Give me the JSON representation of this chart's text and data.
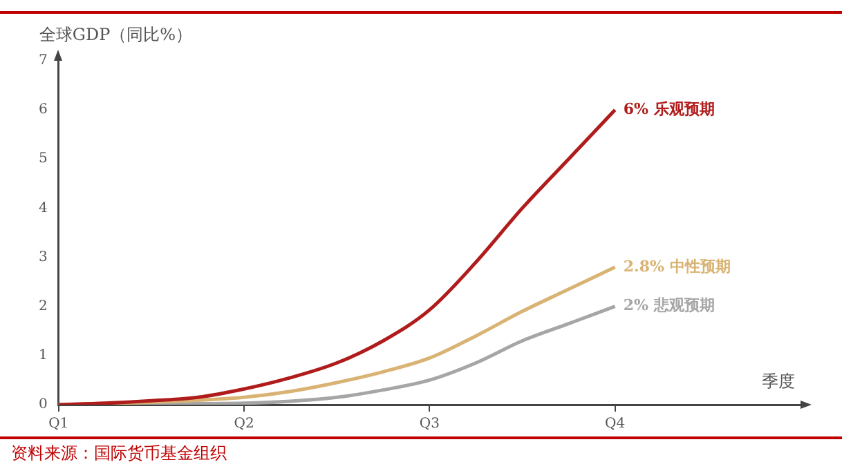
{
  "chart_data": {
    "type": "line",
    "ylabel": "全球GDP（同比%）",
    "xlabel": "季度",
    "categories": [
      "Q1",
      null,
      null,
      null,
      "Q2",
      null,
      null,
      null,
      "Q3",
      null,
      null,
      null,
      "Q4",
      null,
      null,
      null,
      null
    ],
    "ylim": [
      0,
      7
    ],
    "yticks": [
      0,
      1,
      2,
      3,
      4,
      5,
      6,
      7
    ],
    "grid": false,
    "legend": false,
    "marker": "none",
    "line_style": "solid",
    "series": [
      {
        "color": "#b01c1c",
        "values": [
          0,
          0.03,
          0.08,
          0.15,
          0.32,
          0.55,
          0.85,
          1.3,
          1.93,
          2.9,
          4.0,
          5.0,
          6.0,
          null,
          null,
          null,
          null
        ]
      },
      {
        "color": "#d9b373",
        "values": [
          0,
          0.02,
          0.05,
          0.09,
          0.15,
          0.27,
          0.45,
          0.67,
          0.95,
          1.4,
          1.9,
          2.35,
          2.8,
          null,
          null,
          null,
          null
        ]
      },
      {
        "color": "#a6a6a6",
        "values": [
          0,
          0,
          0.01,
          0.02,
          0.03,
          0.07,
          0.15,
          0.3,
          0.5,
          0.85,
          1.3,
          1.65,
          2.0,
          null,
          null,
          null,
          null
        ]
      }
    ],
    "annotations": [
      {
        "text": "6% 乐观预期",
        "x": "Q4",
        "y": 6
      },
      {
        "text": "2.8% 中性预期",
        "x": "Q4",
        "y": 2.8
      },
      {
        "text": "2% 悲观预期",
        "x": "Q4",
        "y": 2
      },
      "资料来源：国际货币基金组织"
    ]
  }
}
